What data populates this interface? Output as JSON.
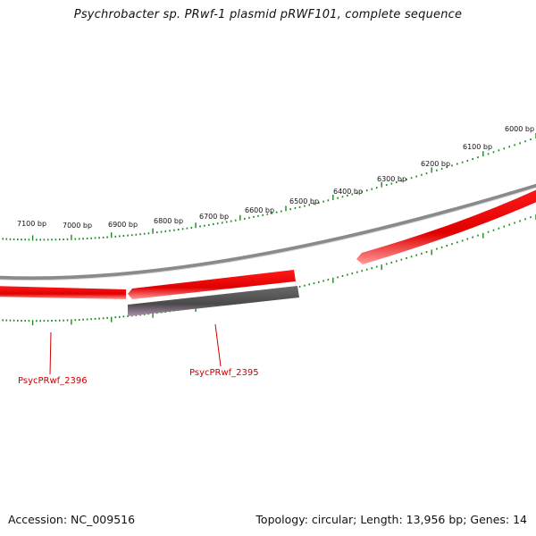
{
  "title": "Psychrobacter sp. PRwf-1 plasmid pRWF101, complete sequence",
  "footer": {
    "accession": "Accession: NC_009516",
    "summary": "Topology: circular; Length: 13,956 bp; Genes: 14"
  },
  "colors": {
    "forward_gene": "#ee0000",
    "reverse_gene": "#555555",
    "backbone": "#888888",
    "tick": "#1a8a1a",
    "gene_label": "#cc0000"
  },
  "scale": {
    "tick_labels": [
      "6000 bp",
      "6100 bp",
      "6200 bp",
      "6300 bp",
      "6400 bp",
      "6500 bp",
      "6600 bp",
      "6700 bp",
      "6800 bp",
      "6900 bp",
      "7000 bp",
      "7100 bp"
    ]
  },
  "gene_labels": [
    {
      "name": "PsycPRwf_2396"
    },
    {
      "name": "PsycPRwf_2395"
    }
  ]
}
